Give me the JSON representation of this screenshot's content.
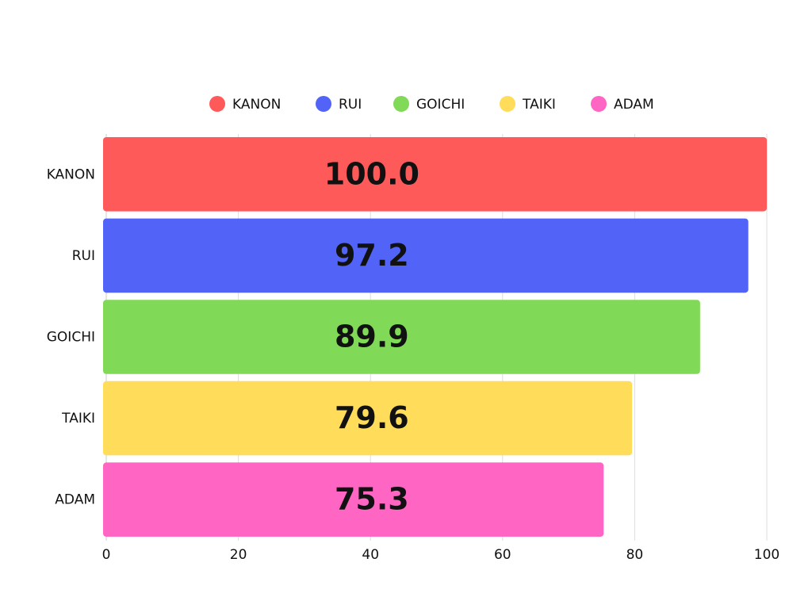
{
  "chart_data": {
    "type": "hbar",
    "categories": [
      "KANON",
      "RUI",
      "GOICHI",
      "TAIKI",
      "ADAM"
    ],
    "values": [
      100,
      97.2,
      89.9,
      79.6,
      75.3
    ],
    "value_labels": [
      "100.0",
      "97.2",
      "89.9",
      "79.6",
      "75.3"
    ],
    "colors": [
      "#ff5a5a",
      "#5263f7",
      "#80d957",
      "#ffdc5a",
      "#ff66c4"
    ],
    "xlim": [
      0,
      100
    ],
    "xticks": [
      0,
      20,
      40,
      60,
      80,
      100
    ],
    "grid": true,
    "legend": "top"
  }
}
